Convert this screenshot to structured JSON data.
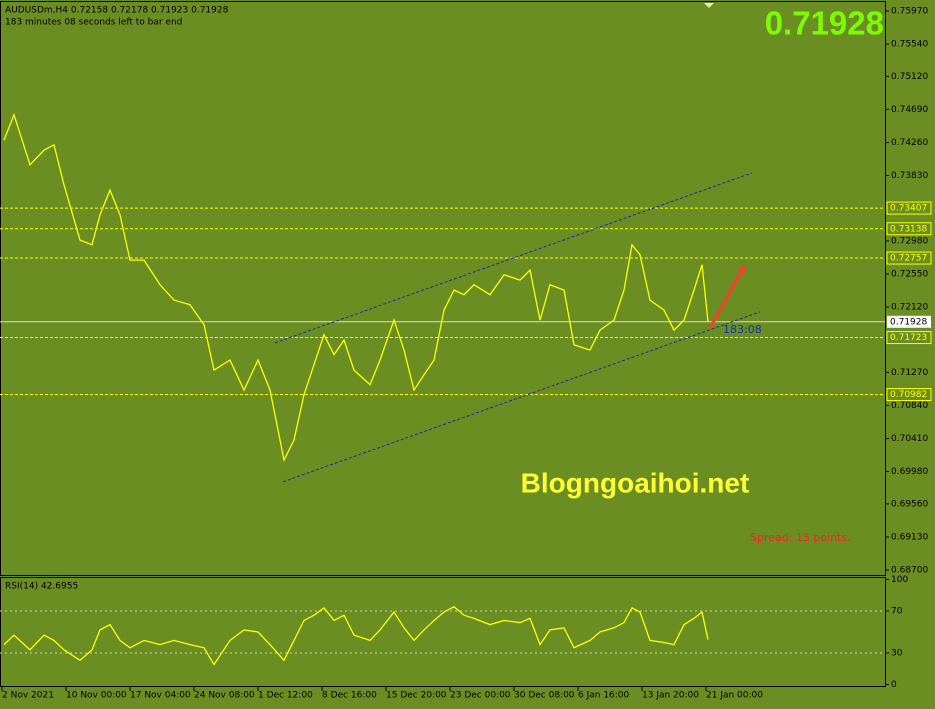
{
  "chart_data": [
    {
      "type": "line",
      "title": "AUDUSDm,H4  0.72158 0.72178 0.71923 0.71928",
      "subtitle": "183 minutes 08 seconds left to bar end",
      "xlim": [
        -1,
        441.5
      ],
      "ylim": [
        0.68635,
        0.76087
      ],
      "x": [
        1,
        6,
        14,
        21,
        26,
        31,
        39,
        45,
        49,
        54,
        59,
        64,
        71,
        79,
        86,
        94,
        101,
        106,
        114,
        121,
        128,
        134,
        141,
        146,
        151,
        156,
        161,
        166,
        171,
        176,
        184,
        189,
        196,
        201,
        206,
        211,
        216,
        221,
        226,
        231,
        236,
        244,
        251,
        259,
        264,
        269,
        274,
        281,
        286,
        294,
        299,
        306,
        311,
        315,
        319,
        324,
        331,
        336,
        341,
        346,
        350,
        353
      ],
      "series": [
        {
          "color": "#ffff00",
          "values": [
            0.7429,
            0.7462,
            0.7397,
            0.7416,
            0.7423,
            0.7371,
            0.7299,
            0.7293,
            0.7332,
            0.7364,
            0.7332,
            0.7273,
            0.7273,
            0.7241,
            0.7221,
            0.7215,
            0.7189,
            0.713,
            0.7143,
            0.7104,
            0.7143,
            0.7104,
            0.7013,
            0.7039,
            0.7098,
            0.7137,
            0.7176,
            0.715,
            0.7169,
            0.713,
            0.7111,
            0.7143,
            0.7195,
            0.7156,
            0.7104,
            0.7124,
            0.7143,
            0.7208,
            0.7234,
            0.7228,
            0.7241,
            0.7228,
            0.7254,
            0.7247,
            0.726,
            0.7195,
            0.7241,
            0.7234,
            0.7163,
            0.7156,
            0.7182,
            0.7195,
            0.7234,
            0.7293,
            0.728,
            0.7221,
            0.7208,
            0.7182,
            0.7195,
            0.7234,
            0.7267,
            0.71928
          ]
        }
      ],
      "yticks": [
        {
          "value": 0.7597,
          "label": "0.75970"
        },
        {
          "value": 0.7554,
          "label": "0.75540"
        },
        {
          "value": 0.7512,
          "label": "0.75120"
        },
        {
          "value": 0.7469,
          "label": "0.74690"
        },
        {
          "value": 0.7426,
          "label": "0.74260"
        },
        {
          "value": 0.7383,
          "label": "0.73830"
        },
        {
          "value": 0.7298,
          "label": "0.72980"
        },
        {
          "value": 0.7255,
          "label": "0.72550"
        },
        {
          "value": 0.7212,
          "label": "0.72120"
        },
        {
          "value": 0.7127,
          "label": "0.71270"
        },
        {
          "value": 0.7084,
          "label": "0.70840"
        },
        {
          "value": 0.7041,
          "label": "0.70410"
        },
        {
          "value": 0.6998,
          "label": "0.69980"
        },
        {
          "value": 0.6956,
          "label": "0.69560"
        },
        {
          "value": 0.6913,
          "label": "0.69130"
        },
        {
          "value": 0.687,
          "label": "0.68700"
        }
      ],
      "levels": [
        {
          "value": 0.73407,
          "label": "0.73407"
        },
        {
          "value": 0.73138,
          "label": "0.73138"
        },
        {
          "value": 0.72757,
          "label": "0.72757"
        },
        {
          "value": 0.71723,
          "label": "0.71723"
        },
        {
          "value": 0.70982,
          "label": "0.70982"
        }
      ],
      "price_line": {
        "value": 0.71928,
        "label": "0.71928"
      },
      "trendlines": [
        {
          "color": "#1a2aa8",
          "x": [
            136.5,
            375
          ],
          "y": [
            0.71654,
            0.73864
          ]
        },
        {
          "color": "#1a2aa8",
          "x": [
            140.5,
            379
          ],
          "y": [
            0.69847,
            0.72057
          ]
        }
      ],
      "arrow": {
        "color": "#ff3b2f",
        "x": [
          354,
          371.5
        ],
        "y": [
          0.71849,
          0.72668
        ]
      },
      "timer_label": "183:08",
      "watermark": "Blogngoaihoi.net",
      "spread_text": "Spread: 15 points."
    },
    {
      "type": "line",
      "title": "RSI(14) 42.6955",
      "xlim": [
        -1,
        441.5
      ],
      "ylim": [
        0,
        100
      ],
      "x": [
        1,
        6,
        14,
        21,
        26,
        31,
        39,
        45,
        49,
        54,
        59,
        64,
        71,
        79,
        86,
        94,
        101,
        106,
        114,
        121,
        128,
        134,
        141,
        146,
        151,
        156,
        161,
        166,
        171,
        176,
        184,
        189,
        196,
        201,
        206,
        211,
        216,
        221,
        226,
        231,
        236,
        244,
        251,
        259,
        264,
        269,
        274,
        281,
        286,
        294,
        299,
        306,
        311,
        315,
        319,
        324,
        331,
        336,
        341,
        346,
        350,
        353
      ],
      "series": [
        {
          "color": "#ffff00",
          "values": [
            38,
            47,
            33,
            47,
            42,
            33,
            23,
            33,
            52,
            57,
            42,
            35,
            42,
            38,
            42,
            38,
            35,
            19,
            42,
            52,
            50,
            38,
            23,
            42,
            61,
            66,
            73,
            61,
            66,
            47,
            42,
            52,
            69,
            54,
            42,
            52,
            61,
            69,
            74,
            66,
            63,
            57,
            61,
            59,
            63,
            38,
            52,
            54,
            35,
            42,
            50,
            54,
            59,
            73,
            69,
            42,
            40,
            38,
            57,
            63,
            69,
            42.6955
          ]
        }
      ],
      "yticks": [
        100,
        70,
        30,
        0
      ],
      "levels": [
        70,
        30
      ],
      "xticks": [
        {
          "value": 0,
          "label": "2 Nov 2021"
        },
        {
          "value": 32,
          "label": "10 Nov 00:00"
        },
        {
          "value": 64,
          "label": "17 Nov 04:00"
        },
        {
          "value": 96,
          "label": "24 Nov 08:00"
        },
        {
          "value": 128,
          "label": "1 Dec 12:00"
        },
        {
          "value": 160,
          "label": "8 Dec 16:00"
        },
        {
          "value": 192,
          "label": "15 Dec 20:00"
        },
        {
          "value": 224,
          "label": "23 Dec 00:00"
        },
        {
          "value": 256,
          "label": "30 Dec 08:00"
        },
        {
          "value": 288,
          "label": "6 Jan 16:00"
        },
        {
          "value": 320,
          "label": "13 Jan 20:00"
        },
        {
          "value": 352,
          "label": "21 Jan 00:00"
        }
      ]
    }
  ]
}
